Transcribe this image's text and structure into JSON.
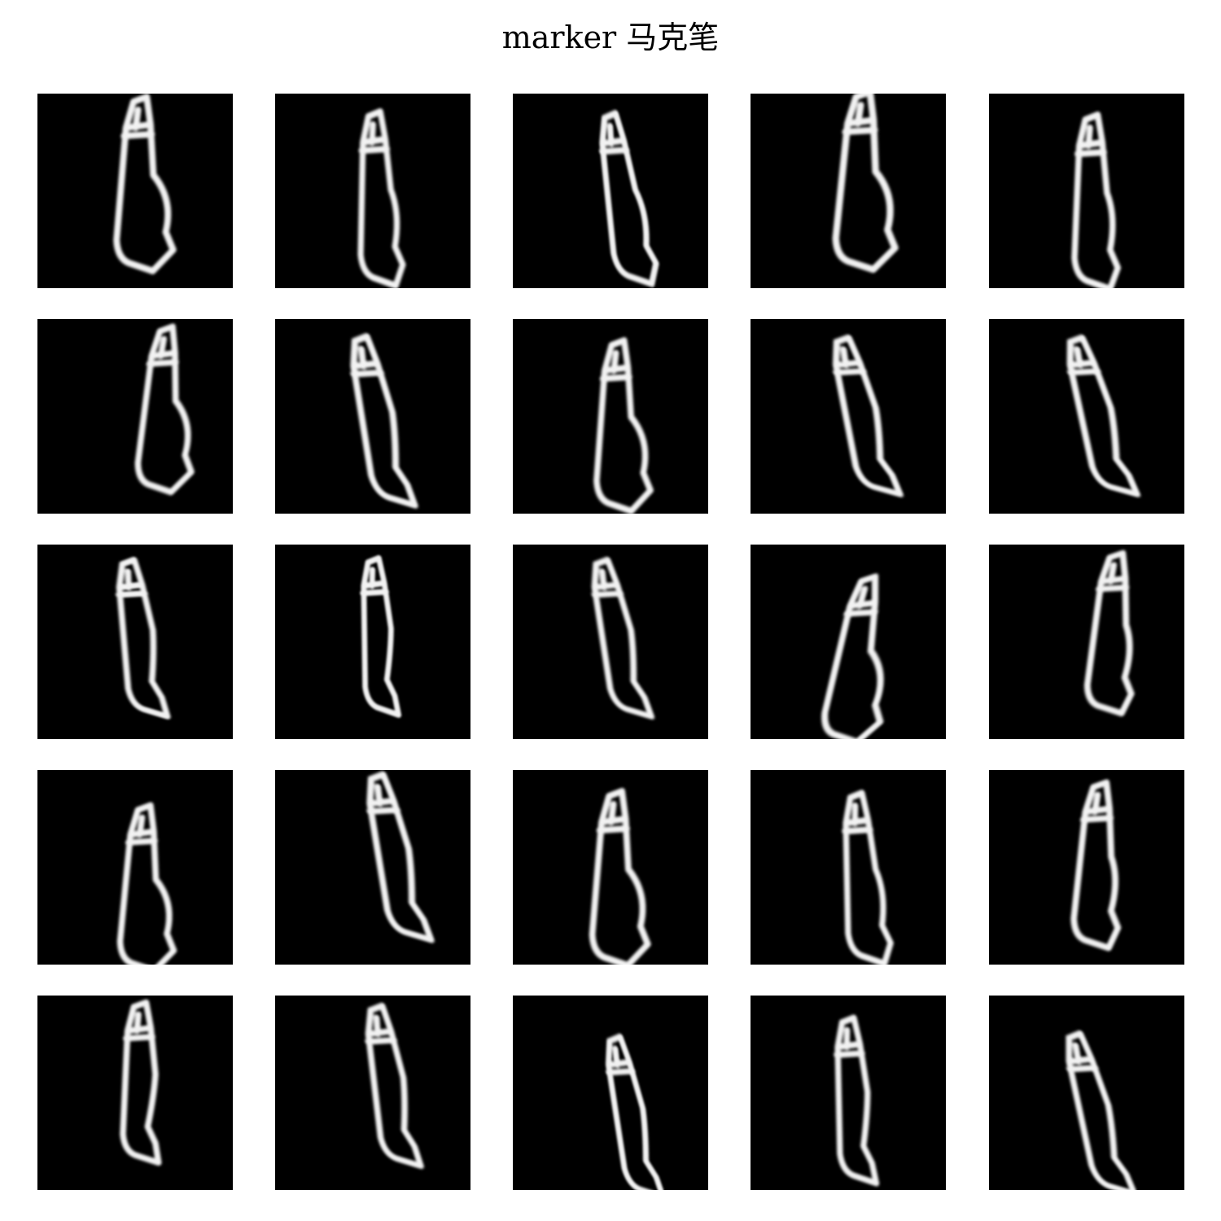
{
  "figure": {
    "title": "marker 马克笔",
    "category": "marker",
    "rows": 5,
    "cols": 5,
    "colors": {
      "background": "#ffffff",
      "tile": "#000000",
      "stroke": "#f2f2f2"
    },
    "tiles": [
      {
        "r": 0,
        "c": 0,
        "skew": -0.04,
        "sx": 1.0,
        "sy": 1.0,
        "dx": -4,
        "dy": 0,
        "bulge": 1
      },
      {
        "r": 0,
        "c": 1,
        "skew": 0.02,
        "sx": 0.92,
        "sy": 1.0,
        "dx": -2,
        "dy": 18,
        "bulge": 0
      },
      {
        "r": 0,
        "c": 2,
        "skew": 0.14,
        "sx": 0.9,
        "sy": 0.98,
        "dx": 8,
        "dy": 18,
        "bulge": 0
      },
      {
        "r": 0,
        "c": 3,
        "skew": -0.06,
        "sx": 1.05,
        "sy": 1.02,
        "dx": 6,
        "dy": -4,
        "bulge": 1
      },
      {
        "r": 0,
        "c": 4,
        "skew": 0.0,
        "sx": 0.95,
        "sy": 1.0,
        "dx": 0,
        "dy": 22,
        "bulge": 0
      },
      {
        "r": 1,
        "c": 0,
        "skew": -0.08,
        "sx": 0.95,
        "sy": 0.95,
        "dx": 24,
        "dy": 0,
        "bulge": 1
      },
      {
        "r": 1,
        "c": 1,
        "skew": 0.2,
        "sx": 1.0,
        "sy": 0.97,
        "dx": 0,
        "dy": 14,
        "bulge": -1
      },
      {
        "r": 1,
        "c": 2,
        "skew": -0.03,
        "sx": 0.95,
        "sy": 0.98,
        "dx": 0,
        "dy": 20,
        "bulge": 1
      },
      {
        "r": 1,
        "c": 3,
        "skew": 0.22,
        "sx": 1.0,
        "sy": 0.9,
        "dx": 10,
        "dy": 8,
        "bulge": -1
      },
      {
        "r": 1,
        "c": 4,
        "skew": 0.24,
        "sx": 1.0,
        "sy": 0.9,
        "dx": 6,
        "dy": 8,
        "bulge": -1
      },
      {
        "r": 2,
        "c": 0,
        "skew": 0.12,
        "sx": 0.95,
        "sy": 0.9,
        "dx": -2,
        "dy": 4,
        "bulge": -1
      },
      {
        "r": 2,
        "c": 1,
        "skew": 0.05,
        "sx": 0.85,
        "sy": 0.9,
        "dx": 0,
        "dy": 2,
        "bulge": -1
      },
      {
        "r": 2,
        "c": 2,
        "skew": 0.18,
        "sx": 0.95,
        "sy": 0.9,
        "dx": 2,
        "dy": 4,
        "bulge": -1
      },
      {
        "r": 2,
        "c": 3,
        "skew": -0.18,
        "sx": 1.0,
        "sy": 0.95,
        "dx": 0,
        "dy": 30,
        "bulge": 1
      },
      {
        "r": 2,
        "c": 4,
        "skew": -0.08,
        "sx": 0.98,
        "sy": 0.92,
        "dx": 22,
        "dy": -2,
        "bulge": 0
      },
      {
        "r": 3,
        "c": 0,
        "skew": -0.05,
        "sx": 0.95,
        "sy": 0.95,
        "dx": 0,
        "dy": 34,
        "bulge": 1
      },
      {
        "r": 3,
        "c": 1,
        "skew": 0.2,
        "sx": 1.0,
        "sy": 0.95,
        "dx": 20,
        "dy": -4,
        "bulge": -1
      },
      {
        "r": 3,
        "c": 2,
        "skew": -0.04,
        "sx": 0.98,
        "sy": 1.0,
        "dx": -4,
        "dy": 22,
        "bulge": 1
      },
      {
        "r": 3,
        "c": 3,
        "skew": 0.06,
        "sx": 0.92,
        "sy": 0.98,
        "dx": 10,
        "dy": 22,
        "bulge": 0
      },
      {
        "r": 3,
        "c": 4,
        "skew": -0.06,
        "sx": 0.98,
        "sy": 0.95,
        "dx": 4,
        "dy": 6,
        "bulge": 0
      },
      {
        "r": 4,
        "c": 0,
        "skew": 0.0,
        "sx": 0.95,
        "sy": 0.92,
        "dx": 0,
        "dy": -4,
        "bulge": -1
      },
      {
        "r": 4,
        "c": 1,
        "skew": 0.15,
        "sx": 0.95,
        "sy": 0.92,
        "dx": 14,
        "dy": 0,
        "bulge": -1
      },
      {
        "r": 4,
        "c": 2,
        "skew": 0.18,
        "sx": 0.88,
        "sy": 0.92,
        "dx": 18,
        "dy": 38,
        "bulge": -1
      },
      {
        "r": 4,
        "c": 3,
        "skew": 0.06,
        "sx": 0.92,
        "sy": 0.95,
        "dx": 0,
        "dy": 18,
        "bulge": -1
      },
      {
        "r": 4,
        "c": 4,
        "skew": 0.24,
        "sx": 0.95,
        "sy": 0.92,
        "dx": 4,
        "dy": 34,
        "bulge": -1
      }
    ]
  }
}
